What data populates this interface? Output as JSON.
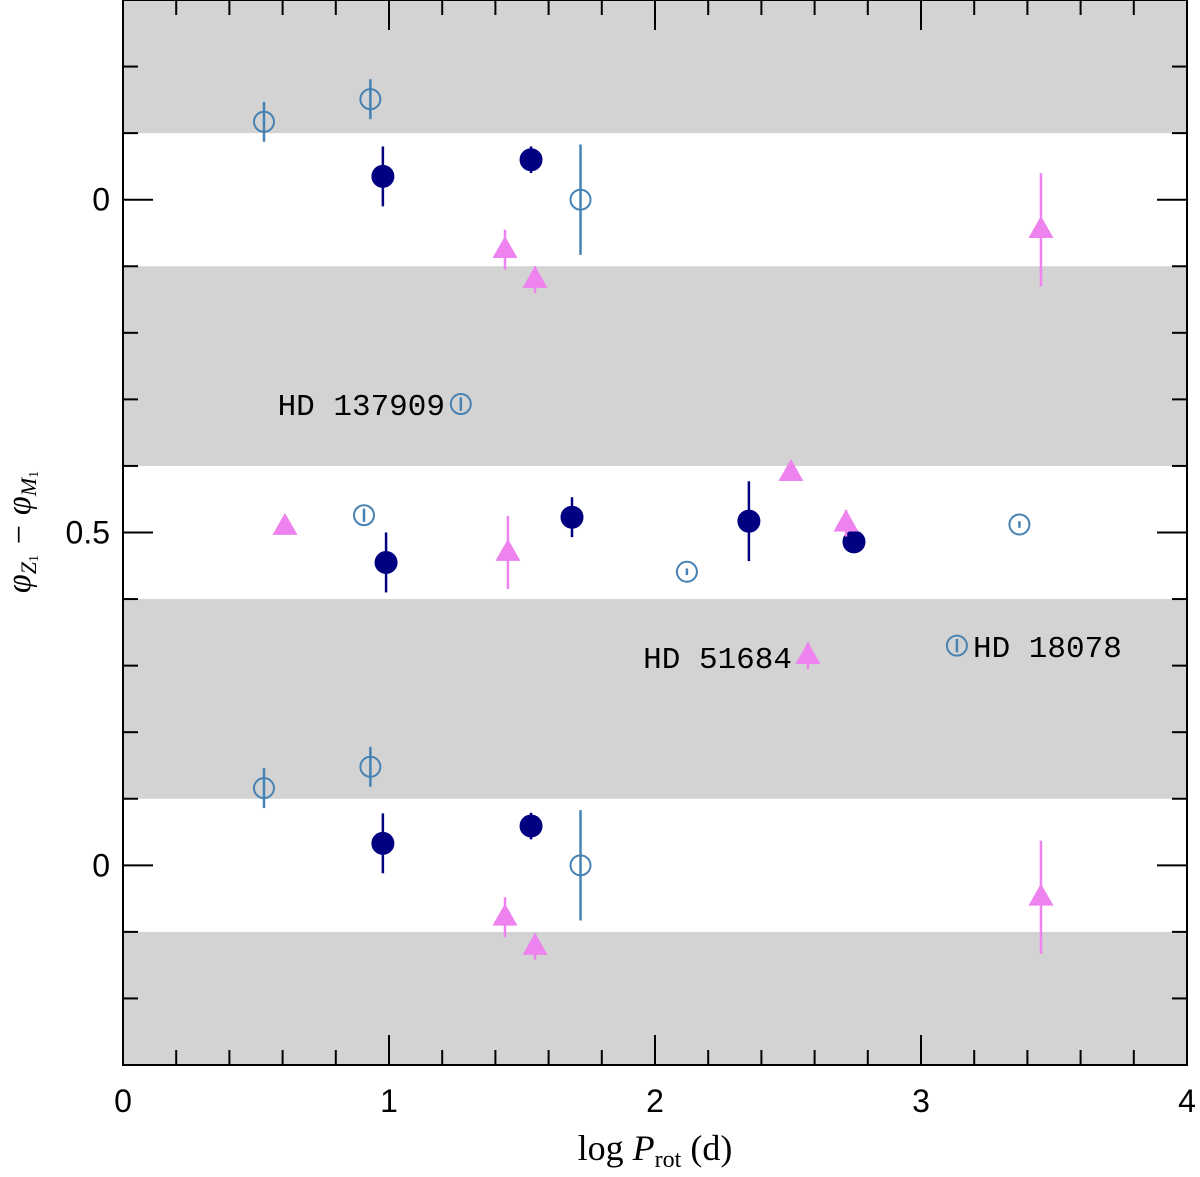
{
  "chart_data": {
    "type": "scatter",
    "xlabel": [
      "log ",
      "P",
      "rot",
      " (d)"
    ],
    "ylabel": [
      "φ",
      "Z",
      "1",
      " − φ",
      "M",
      "1"
    ],
    "xlim": [
      0,
      4
    ],
    "xticks": [
      0,
      1,
      2,
      3,
      4
    ],
    "xminorticks": [
      0.2,
      0.4,
      0.6,
      0.8,
      1.2,
      1.4,
      1.6,
      1.8,
      2.2,
      2.4,
      2.6,
      2.8,
      3.2,
      3.4,
      3.6,
      3.8
    ],
    "ylim": [
      -0.3,
      1.3
    ],
    "yreversed": true,
    "yticks": [
      {
        "value": 0,
        "label": "0"
      },
      {
        "value": 0.5,
        "label": "0.5"
      },
      {
        "value": 1,
        "label": "0"
      }
    ],
    "yminorticks": [
      -0.2,
      -0.1,
      0.1,
      0.2,
      0.3,
      0.4,
      0.6,
      0.7,
      0.8,
      0.9,
      1.1,
      1.2
    ],
    "bands": [
      [
        -0.3,
        -0.1
      ],
      [
        0.1,
        0.4
      ],
      [
        0.6,
        0.9
      ],
      [
        1.1,
        1.3
      ]
    ],
    "band_color": "#d3d3d3",
    "series": [
      {
        "marker": "circle",
        "filled": true,
        "color": "#000080",
        "x": [
          0.977,
          1.534,
          0.989,
          1.688,
          2.353,
          2.748,
          0.977,
          1.534
        ],
        "values": [
          -0.035,
          -0.06,
          0.545,
          0.477,
          0.483,
          0.514,
          0.967,
          0.941
        ],
        "errors": [
          0.045,
          0.02,
          0.045,
          0.03,
          0.06,
          0.015,
          0.045,
          0.02
        ]
      },
      {
        "marker": "circle",
        "filled": false,
        "color": "#4682b4",
        "x": [
          0.53,
          0.93,
          1.72,
          1.27,
          0.906,
          2.12,
          3.37,
          3.135,
          0.53,
          0.93,
          1.72
        ],
        "values": [
          -0.117,
          -0.151,
          0.0,
          0.307,
          0.474,
          0.559,
          0.488,
          0.67,
          0.884,
          0.852,
          1.0
        ],
        "errors": [
          0.03,
          0.03,
          0.083,
          0.01,
          0.01,
          0.005,
          0.005,
          0.01,
          0.03,
          0.03,
          0.083
        ]
      },
      {
        "marker": "triangle",
        "filled": true,
        "color": "#ee82ee",
        "x": [
          1.436,
          1.549,
          3.451,
          0.609,
          1.447,
          2.511,
          2.575,
          2.718,
          1.436,
          1.549,
          3.451
        ],
        "values": [
          0.075,
          0.12,
          0.045,
          0.491,
          0.53,
          0.41,
          0.685,
          0.486,
          1.078,
          1.122,
          1.048
        ],
        "errors": [
          0.03,
          0.02,
          0.085,
          0,
          0.055,
          0.005,
          0.02,
          0.02,
          0.03,
          0.02,
          0.085
        ]
      }
    ],
    "annotations": [
      "HD 137909",
      "HD 51684",
      "HD 18078"
    ]
  }
}
